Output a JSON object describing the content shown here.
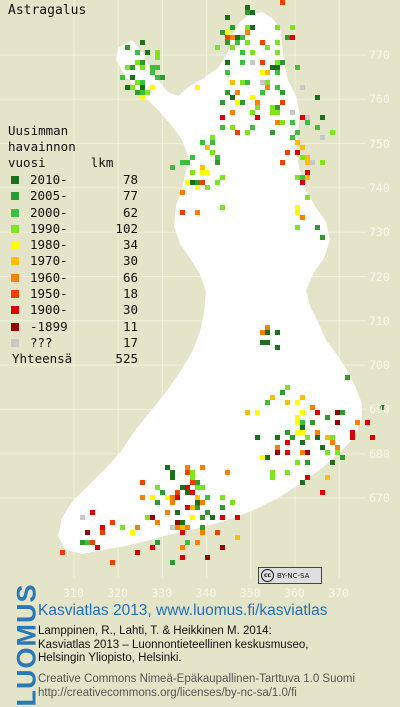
{
  "title": "Astragalus",
  "legend": {
    "heading": [
      "Uusimman",
      "havainnon",
      "vuosi      lkm"
    ],
    "items": [
      {
        "label": "2010-",
        "count": "78",
        "color": "#1d6e1d"
      },
      {
        "label": "2005-",
        "count": "77",
        "color": "#2f9a2f"
      },
      {
        "label": "2000-",
        "count": "62",
        "color": "#3fbf3f"
      },
      {
        "label": "1990-",
        "count": "102",
        "color": "#7fe31f"
      },
      {
        "label": "1980-",
        "count": "34",
        "color": "#ffff00"
      },
      {
        "label": "1970-",
        "count": "30",
        "color": "#ffbf00"
      },
      {
        "label": "1960-",
        "count": "66",
        "color": "#ff7f00"
      },
      {
        "label": "1950-",
        "count": "18",
        "color": "#ee4000"
      },
      {
        "label": "1900-",
        "count": "30",
        "color": "#dd0000"
      },
      {
        "label": "-1899",
        "count": "11",
        "color": "#990000"
      },
      {
        "label": "???",
        "count": "17",
        "color": "#c8c8c8"
      }
    ],
    "total_label": "Yhteensä",
    "total_count": "525"
  },
  "y_ticks": [
    "770",
    "760",
    "750",
    "740",
    "730",
    "720",
    "710",
    "700",
    "690",
    "680",
    "670"
  ],
  "x_ticks": [
    "310",
    "320",
    "330",
    "340",
    "350",
    "360",
    "370"
  ],
  "license_badge": "BY-NC-SA",
  "footer": {
    "brand": "LUOMUS",
    "main": "Kasviatlas 2013, www.luomus.fi/kasviatlas",
    "citation": [
      "Lamppinen, R., Lahti, T. & Heikkinen M. 2014:",
      "Kasviatlas 2013 – Luonnontieteellinen keskusmuseo,",
      "Helsingin Yliopisto, Helsinki."
    ],
    "license": [
      "Creative Commons Nimeä-Epäkaupallinen-Tarttuva 1.0 Suomi",
      "http://creativecommons.org/licenses/by-nc-sa/1.0/fi"
    ]
  }
}
